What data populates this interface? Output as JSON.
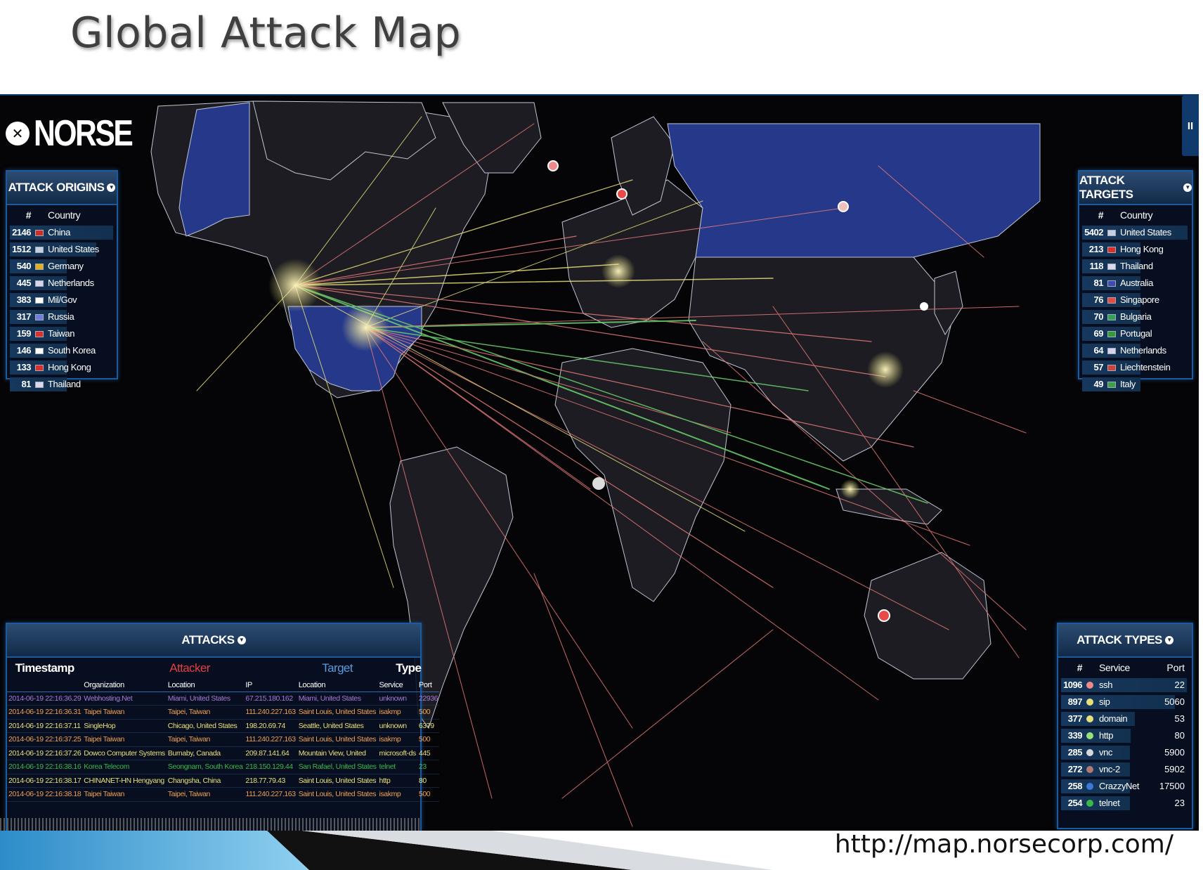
{
  "slide": {
    "title": "Global Attack Map",
    "url": "http://map.norsecorp.com/"
  },
  "app": {
    "logo_text": "NORSE",
    "logo_icon": "norse-emblem-icon",
    "pause_label": "II",
    "colors": {
      "background": "#050507",
      "panel_border": "#1c5a9c",
      "land": "#1c1c22",
      "highlight_land": "#25388a",
      "attack_red": "#e87a7a",
      "attack_yellow": "#e8e07a",
      "attack_green": "#6ad26a"
    }
  },
  "origins": {
    "title": "ATTACK ORIGINS",
    "col_num": "#",
    "col_country": "Country",
    "rows": [
      {
        "count": "2146",
        "country": "China",
        "flag": "#d12b2b"
      },
      {
        "count": "1512",
        "country": "United States",
        "flag": "#c2d1e8"
      },
      {
        "count": "540",
        "country": "Germany",
        "flag": "#e0b020"
      },
      {
        "count": "445",
        "country": "Netherlands",
        "flag": "#d4d4f0"
      },
      {
        "count": "383",
        "country": "Mil/Gov",
        "flag": "#ffffff"
      },
      {
        "count": "317",
        "country": "Russia",
        "flag": "#6e7ee0"
      },
      {
        "count": "159",
        "country": "Taiwan",
        "flag": "#e02c2c"
      },
      {
        "count": "146",
        "country": "South Korea",
        "flag": "#ffffff"
      },
      {
        "count": "133",
        "country": "Hong Kong",
        "flag": "#e02c2c"
      },
      {
        "count": "81",
        "country": "Thailand",
        "flag": "#d8d8f2"
      }
    ]
  },
  "targets": {
    "title": "ATTACK TARGETS",
    "col_num": "#",
    "col_country": "Country",
    "rows": [
      {
        "count": "5402",
        "country": "United States",
        "flag": "#c2d1e8"
      },
      {
        "count": "213",
        "country": "Hong Kong",
        "flag": "#e02c2c"
      },
      {
        "count": "118",
        "country": "Thailand",
        "flag": "#d8d8f2"
      },
      {
        "count": "81",
        "country": "Australia",
        "flag": "#3a4ab8"
      },
      {
        "count": "76",
        "country": "Singapore",
        "flag": "#e84a4a"
      },
      {
        "count": "70",
        "country": "Bulgaria",
        "flag": "#2fa35a"
      },
      {
        "count": "69",
        "country": "Portugal",
        "flag": "#2f9b3a"
      },
      {
        "count": "64",
        "country": "Netherlands",
        "flag": "#d4d4f0"
      },
      {
        "count": "57",
        "country": "Liechtenstein",
        "flag": "#d04040"
      },
      {
        "count": "49",
        "country": "Italy",
        "flag": "#3aa04a"
      }
    ]
  },
  "types": {
    "title": "ATTACK TYPES",
    "col_num": "#",
    "col_service": "Service",
    "col_port": "Port",
    "rows": [
      {
        "count": "1096",
        "service": "ssh",
        "port": "22",
        "color": "#f08a8a"
      },
      {
        "count": "897",
        "service": "sip",
        "port": "5060",
        "color": "#e8e07a"
      },
      {
        "count": "377",
        "service": "domain",
        "port": "53",
        "color": "#e8e07a"
      },
      {
        "count": "339",
        "service": "http",
        "port": "80",
        "color": "#9be07a"
      },
      {
        "count": "285",
        "service": "vnc",
        "port": "5900",
        "color": "#d8d8d8"
      },
      {
        "count": "272",
        "service": "vnc-2",
        "port": "5902",
        "color": "#b07a70"
      },
      {
        "count": "258",
        "service": "CrazzyNet",
        "port": "17500",
        "color": "#3a7ad8"
      },
      {
        "count": "254",
        "service": "telnet",
        "port": "23",
        "color": "#3ab84a"
      }
    ]
  },
  "attacks": {
    "title": "ATTACKS",
    "head_timestamp": "Timestamp",
    "head_attacker": "Attacker",
    "head_target": "Target",
    "head_type": "Type",
    "sub_org": "Organization",
    "sub_loc": "Location",
    "sub_ip": "IP",
    "sub_tloc": "Location",
    "sub_service": "Service",
    "sub_port": "Port",
    "rows": [
      {
        "ts": "2014-06-19  22:16:36.29",
        "org": "Webhosting.Net",
        "loc": "Miami, United States",
        "ip": "67.215.180.162",
        "target": "Miami, United States",
        "service": "unknown",
        "port": "22936",
        "color": "#a77ad8"
      },
      {
        "ts": "2014-06-19  22:16:36.31",
        "org": "Taipei Taiwan",
        "loc": "Taipei, Taiwan",
        "ip": "111.240.227.163",
        "target": "Saint Louis, United States",
        "service": "isakmp",
        "port": "500",
        "color": "#f0a050"
      },
      {
        "ts": "2014-06-19  22:16:37.11",
        "org": "SingleHop",
        "loc": "Chicago, United States",
        "ip": "198.20.69.74",
        "target": "Seattle, United States",
        "service": "unknown",
        "port": "6379",
        "color": "#e8e07a"
      },
      {
        "ts": "2014-06-19  22:16:37.25",
        "org": "Taipei Taiwan",
        "loc": "Taipei, Taiwan",
        "ip": "111.240.227.163",
        "target": "Saint Louis, United States",
        "service": "isakmp",
        "port": "500",
        "color": "#f0a050"
      },
      {
        "ts": "2014-06-19  22:16:37.26",
        "org": "Dowco Computer Systems",
        "loc": "Burnaby, Canada",
        "ip": "209.87.141.64",
        "target": "Mountain View, United",
        "service": "microsoft-ds",
        "port": "445",
        "color": "#e8e07a"
      },
      {
        "ts": "2014-06-19  22:16:38.16",
        "org": "Korea Telecom",
        "loc": "Seongnam, South Korea",
        "ip": "218.150.129.44",
        "target": "San Rafael, United States",
        "service": "telnet",
        "port": "23",
        "color": "#3ab84a"
      },
      {
        "ts": "2014-06-19  22:16:38.17",
        "org": "CHINANET-HN Hengyang",
        "loc": "Changsha, China",
        "ip": "218.77.79.43",
        "target": "Saint Louis, United States",
        "service": "http",
        "port": "80",
        "color": "#e8e07a"
      },
      {
        "ts": "2014-06-19  22:16:38.18",
        "org": "Taipei Taiwan",
        "loc": "Taipei, Taiwan",
        "ip": "111.240.227.163",
        "target": "Saint Louis, United States",
        "service": "isakmp",
        "port": "500",
        "color": "#f0a050"
      }
    ]
  }
}
